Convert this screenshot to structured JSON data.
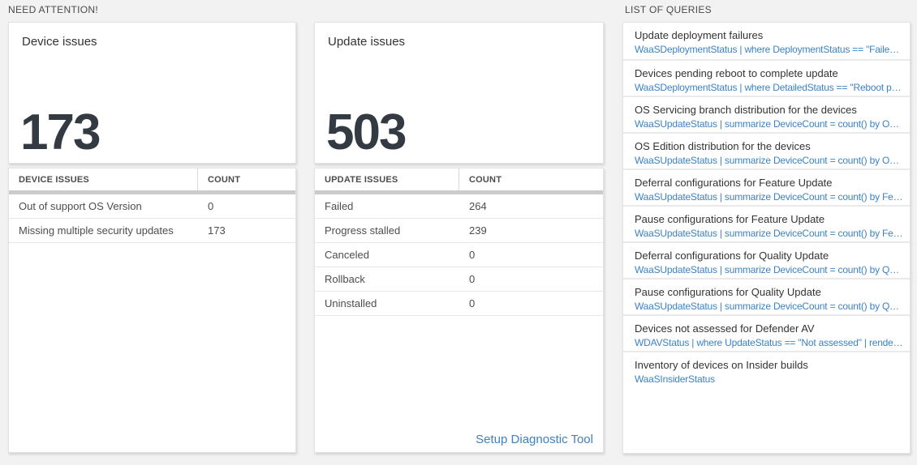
{
  "colors": {
    "page_bg": "#f2f2f2",
    "accent_blue": "#3c82c4",
    "big_number_color": "#333a42"
  },
  "need_attention": {
    "label": "NEED ATTENTION!",
    "device_card": {
      "title": "Device issues",
      "big_number": "173",
      "table": {
        "headers": [
          "DEVICE ISSUES",
          "COUNT"
        ],
        "rows": [
          {
            "label": "Out of support OS Version",
            "count": "0"
          },
          {
            "label": "Missing multiple security updates",
            "count": "173"
          }
        ]
      }
    },
    "update_card": {
      "title": "Update issues",
      "big_number": "503",
      "table": {
        "headers": [
          "UPDATE ISSUES",
          "COUNT"
        ],
        "rows": [
          {
            "label": "Failed",
            "count": "264"
          },
          {
            "label": "Progress stalled",
            "count": "239"
          },
          {
            "label": "Canceled",
            "count": "0"
          },
          {
            "label": "Rollback",
            "count": "0"
          },
          {
            "label": "Uninstalled",
            "count": "0"
          }
        ]
      },
      "link_label": "Setup Diagnostic Tool"
    }
  },
  "queries": {
    "label": "LIST OF QUERIES",
    "items": [
      {
        "title": "Update deployment failures",
        "query": "WaaSDeploymentStatus | where DeploymentStatus == \"Failed\" |..."
      },
      {
        "title": "Devices pending reboot to complete update",
        "query": "WaaSDeploymentStatus | where DetailedStatus == \"Reboot pend..."
      },
      {
        "title": "OS Servicing branch distribution for the devices",
        "query": "WaaSUpdateStatus | summarize DeviceCount = count() by OSSer..."
      },
      {
        "title": "OS Edition distribution for the devices",
        "query": "WaaSUpdateStatus | summarize DeviceCount = count() by OSEdit..."
      },
      {
        "title": "Deferral configurations for Feature Update",
        "query": "WaaSUpdateStatus | summarize DeviceCount = count() by Featur..."
      },
      {
        "title": "Pause configurations for Feature Update",
        "query": "WaaSUpdateStatus | summarize DeviceCount = count() by Featur..."
      },
      {
        "title": "Deferral configurations for Quality Update",
        "query": "WaaSUpdateStatus | summarize DeviceCount = count() by Qualit..."
      },
      {
        "title": "Pause configurations for Quality Update",
        "query": "WaaSUpdateStatus | summarize DeviceCount = count() by Qualit..."
      },
      {
        "title": "Devices not assessed for Defender AV",
        "query": "WDAVStatus | where UpdateStatus == \"Not assessed\" | render ta..."
      },
      {
        "title": "Inventory of devices on Insider builds",
        "query": "WaaSInsiderStatus"
      }
    ]
  }
}
